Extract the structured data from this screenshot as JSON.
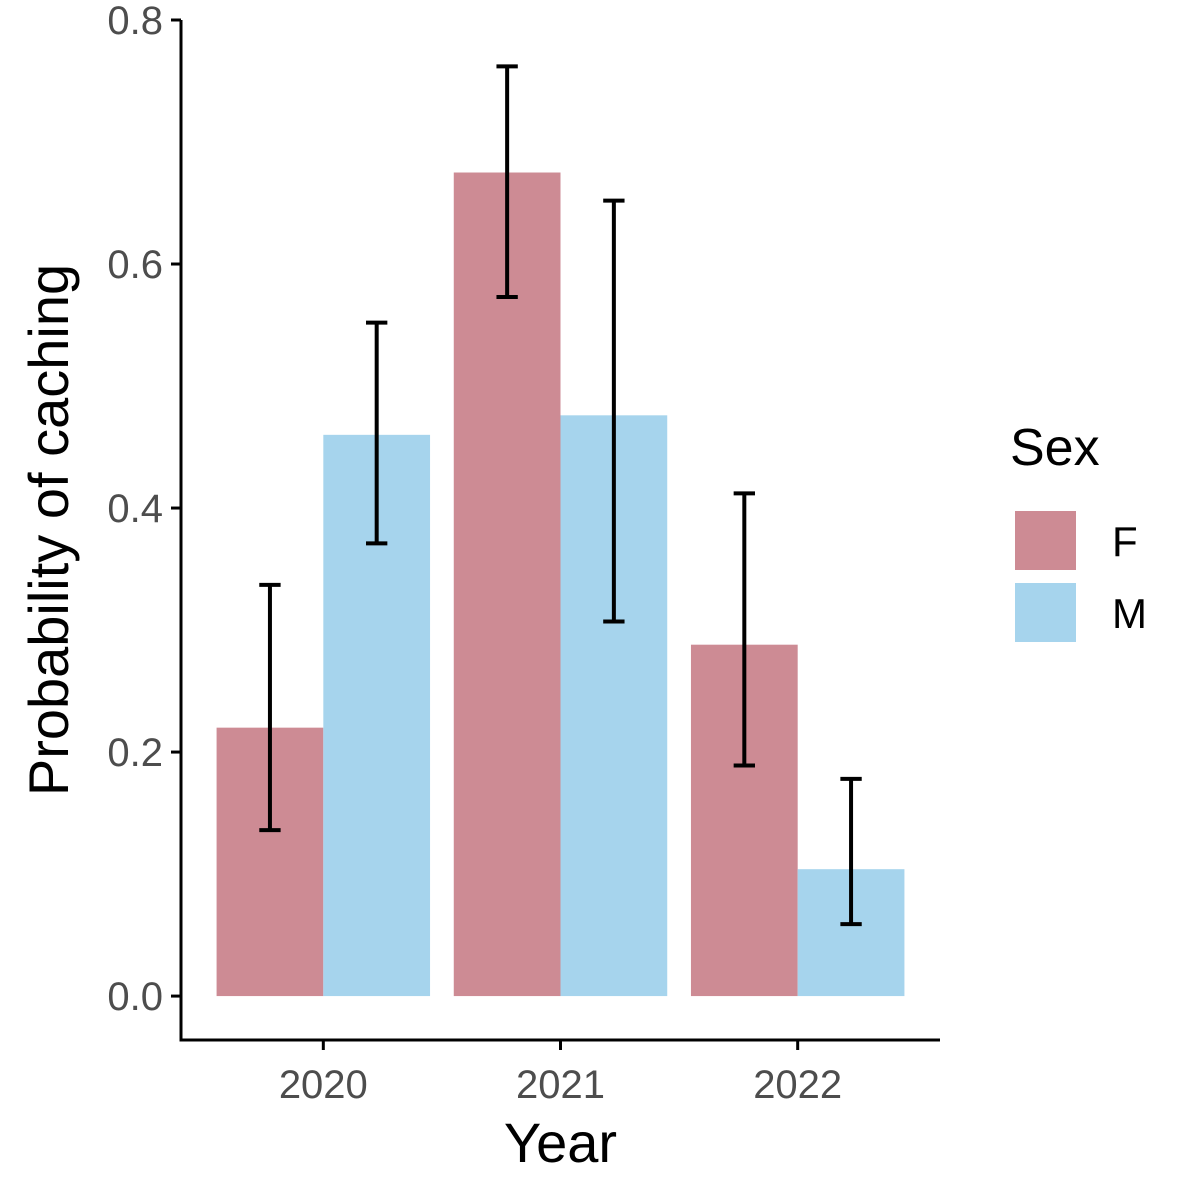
{
  "chart_data": {
    "type": "bar",
    "categories": [
      "2020",
      "2021",
      "2022"
    ],
    "series": [
      {
        "name": "F",
        "color": "#cd8b94",
        "values": [
          0.22,
          0.675,
          0.288
        ],
        "ci_low": [
          0.136,
          0.573,
          0.189
        ],
        "ci_high": [
          0.337,
          0.762,
          0.412
        ]
      },
      {
        "name": "M",
        "color": "#a6d4ed",
        "values": [
          0.46,
          0.476,
          0.104
        ],
        "ci_low": [
          0.371,
          0.307,
          0.059
        ],
        "ci_high": [
          0.552,
          0.652,
          0.178
        ]
      }
    ],
    "xlabel": "Year",
    "ylabel": "Probability of caching",
    "ylim": [
      -0.036,
      0.8
    ],
    "yticks": [
      0.0,
      0.2,
      0.4,
      0.6,
      0.8
    ],
    "ytick_labels": [
      "0.0",
      "0.2",
      "0.4",
      "0.6",
      "0.8"
    ],
    "legend": {
      "title": "Sex",
      "placement": "right"
    },
    "grid": false
  }
}
